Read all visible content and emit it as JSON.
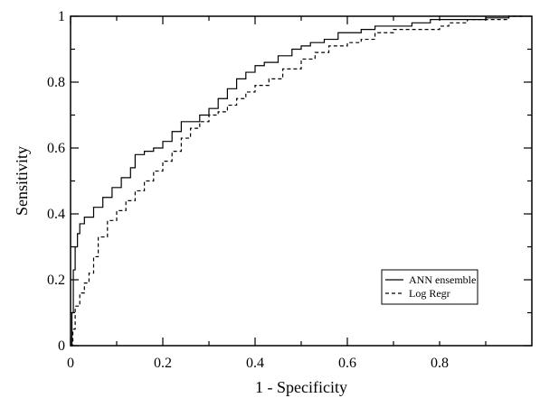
{
  "chart_data": {
    "type": "line",
    "title": "",
    "xlabel": "1 - Specificity",
    "ylabel": "Sensitivity",
    "xlim": [
      0,
      1
    ],
    "ylim": [
      0,
      1
    ],
    "grid": false,
    "legend_position": "bottom-right",
    "x_ticks": [
      0,
      0.2,
      0.4,
      0.6,
      0.8
    ],
    "x_tick_labels": [
      "0",
      "0.2",
      "0.4",
      "0.6",
      "0.8"
    ],
    "y_ticks": [
      0,
      0.2,
      0.4,
      0.6,
      0.8,
      1
    ],
    "y_tick_labels": [
      "0",
      "0.2",
      "0.4",
      "0.6",
      "0.8",
      "1"
    ],
    "series": [
      {
        "name": "ANN ensemble",
        "style": "solid",
        "x": [
          0,
          0.003,
          0.006,
          0.01,
          0.015,
          0.02,
          0.03,
          0.05,
          0.07,
          0.09,
          0.11,
          0.13,
          0.14,
          0.16,
          0.18,
          0.2,
          0.22,
          0.24,
          0.26,
          0.28,
          0.3,
          0.32,
          0.34,
          0.36,
          0.38,
          0.4,
          0.42,
          0.45,
          0.48,
          0.5,
          0.52,
          0.55,
          0.58,
          0.6,
          0.63,
          0.66,
          0.7,
          0.74,
          0.78,
          0.8,
          0.85,
          0.9,
          0.95,
          0.98
        ],
        "y": [
          0,
          0.1,
          0.23,
          0.3,
          0.34,
          0.37,
          0.39,
          0.42,
          0.45,
          0.48,
          0.51,
          0.54,
          0.58,
          0.59,
          0.6,
          0.62,
          0.65,
          0.68,
          0.68,
          0.7,
          0.72,
          0.75,
          0.78,
          0.81,
          0.83,
          0.85,
          0.86,
          0.88,
          0.9,
          0.91,
          0.92,
          0.93,
          0.95,
          0.95,
          0.96,
          0.97,
          0.97,
          0.98,
          0.99,
          0.99,
          0.99,
          0.995,
          1.0,
          1.0
        ]
      },
      {
        "name": "Log Regr",
        "style": "dashed",
        "x": [
          0,
          0.005,
          0.01,
          0.02,
          0.03,
          0.04,
          0.05,
          0.06,
          0.08,
          0.1,
          0.12,
          0.14,
          0.16,
          0.18,
          0.2,
          0.22,
          0.24,
          0.26,
          0.28,
          0.3,
          0.32,
          0.34,
          0.36,
          0.38,
          0.4,
          0.43,
          0.46,
          0.5,
          0.53,
          0.56,
          0.6,
          0.63,
          0.66,
          0.7,
          0.75,
          0.8,
          0.82,
          0.86,
          0.9,
          0.95,
          0.98
        ],
        "y": [
          0,
          0.05,
          0.12,
          0.16,
          0.19,
          0.22,
          0.27,
          0.33,
          0.38,
          0.41,
          0.44,
          0.47,
          0.5,
          0.53,
          0.56,
          0.59,
          0.63,
          0.66,
          0.68,
          0.7,
          0.71,
          0.73,
          0.75,
          0.77,
          0.79,
          0.81,
          0.84,
          0.87,
          0.89,
          0.91,
          0.92,
          0.93,
          0.95,
          0.96,
          0.96,
          0.97,
          0.98,
          0.99,
          0.99,
          1.0,
          1.0
        ]
      }
    ]
  }
}
